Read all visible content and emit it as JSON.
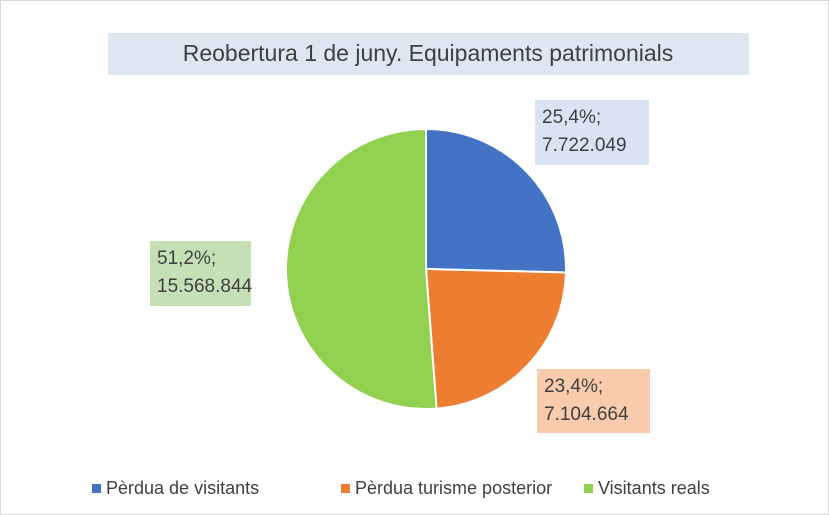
{
  "chart_data": {
    "type": "pie",
    "title": "Reobertura 1 de juny. Equipaments patrimonials",
    "categories": [
      "Pèrdua de visitants",
      "Pèrdua turisme posterior",
      "Visitants reals"
    ],
    "values": [
      25.4,
      23.4,
      51.2
    ],
    "value_labels": [
      [
        "25,4%;",
        "7.722.049"
      ],
      [
        "23,4%;",
        "7.104.664"
      ],
      [
        "51,2%;",
        "15.568.844"
      ]
    ],
    "colors": [
      "#4472c4",
      "#ed7d31",
      "#92d050"
    ],
    "legend": "bottom"
  }
}
